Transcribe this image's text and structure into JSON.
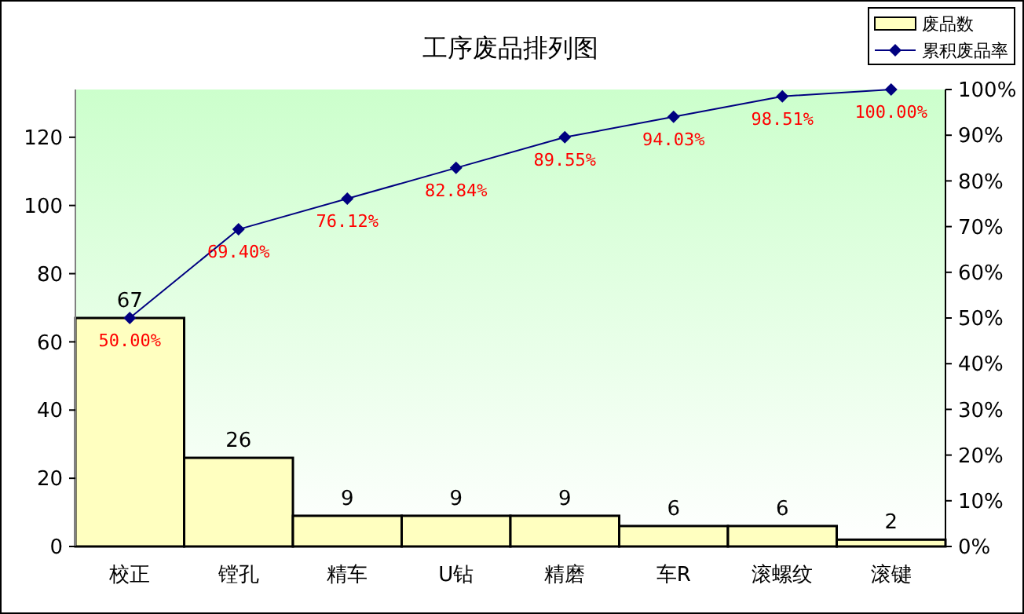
{
  "chart_data": {
    "type": "bar",
    "title": "工序废品排列图",
    "categories": [
      "校正",
      "镗孔",
      "精车",
      "U钻",
      "精磨",
      "车R",
      "滚螺纹",
      "滚键"
    ],
    "series": [
      {
        "name": "废品数",
        "color": "#ffffc0",
        "values": [
          67,
          26,
          9,
          9,
          9,
          6,
          6,
          2
        ],
        "data_labels": true
      },
      {
        "name": "累积废品率",
        "type": "line",
        "axis": "y2",
        "color": "#000080",
        "marker": "diamond",
        "values": [
          50.0,
          69.4,
          76.12,
          82.84,
          89.55,
          94.03,
          98.51,
          100.0
        ],
        "value_labels": [
          "50.00%",
          "69.40%",
          "76.12%",
          "82.84%",
          "89.55%",
          "94.03%",
          "98.51%",
          "100.00%"
        ]
      }
    ],
    "ylim": [
      0,
      134
    ],
    "yticks": [
      0,
      20,
      40,
      60,
      80,
      100,
      120
    ],
    "y2lim": [
      0,
      100
    ],
    "y2ticks": [
      {
        "value": 0,
        "label": "0%"
      },
      {
        "value": 10,
        "label": "10%"
      },
      {
        "value": 20,
        "label": "20%"
      },
      {
        "value": 30,
        "label": "30%"
      },
      {
        "value": 40,
        "label": "40%"
      },
      {
        "value": 50,
        "label": "50%"
      },
      {
        "value": 60,
        "label": "60%"
      },
      {
        "value": 70,
        "label": "70%"
      },
      {
        "value": 80,
        "label": "80%"
      },
      {
        "value": 90,
        "label": "90%"
      },
      {
        "value": 100,
        "label": "100%"
      }
    ],
    "grid": false,
    "legend": "top right"
  }
}
